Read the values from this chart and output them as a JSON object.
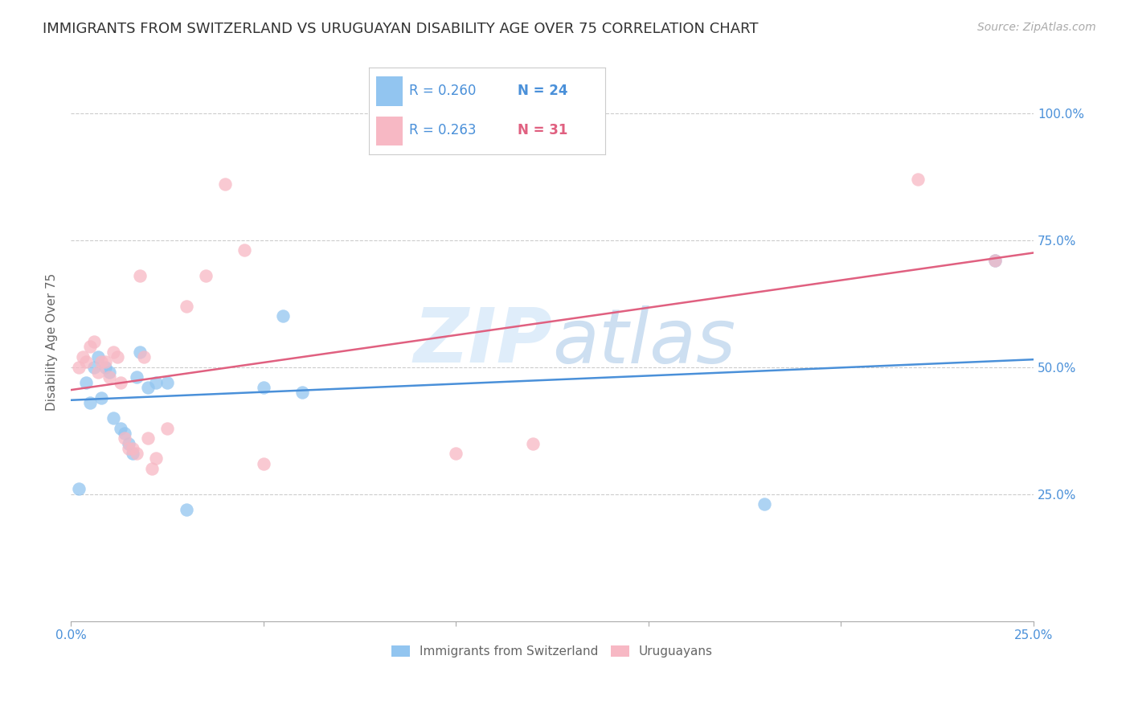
{
  "title": "IMMIGRANTS FROM SWITZERLAND VS URUGUAYAN DISABILITY AGE OVER 75 CORRELATION CHART",
  "source": "Source: ZipAtlas.com",
  "ylabel": "Disability Age Over 75",
  "xlim": [
    0.0,
    0.25
  ],
  "ylim": [
    0.0,
    1.1
  ],
  "xticks": [
    0.0,
    0.05,
    0.1,
    0.15,
    0.2,
    0.25
  ],
  "xticklabels": [
    "0.0%",
    "",
    "",
    "",
    "",
    "25.0%"
  ],
  "yticks": [
    0.25,
    0.5,
    0.75,
    1.0
  ],
  "yticklabels": [
    "25.0%",
    "50.0%",
    "75.0%",
    "100.0%"
  ],
  "legend_r_blue": "R = 0.260",
  "legend_n_blue": "N = 24",
  "legend_r_pink": "R = 0.263",
  "legend_n_pink": "N = 31",
  "blue_scatter_color": "#92c5f0",
  "pink_scatter_color": "#f7b8c4",
  "line_blue_color": "#4a90d9",
  "line_pink_color": "#e06080",
  "tick_color": "#4a90d9",
  "ylabel_color": "#666666",
  "title_color": "#333333",
  "source_color": "#aaaaaa",
  "grid_color": "#cccccc",
  "legend_text_dark": "#333333",
  "legend_val_color": "#4a90d9",
  "legend_n_blue_color": "#4a90d9",
  "legend_n_pink_color": "#e06080",
  "title_fontsize": 13,
  "axis_label_fontsize": 11,
  "tick_fontsize": 11,
  "source_fontsize": 10,
  "legend_fontsize": 13,
  "blue_scatter_x": [
    0.002,
    0.004,
    0.005,
    0.006,
    0.007,
    0.008,
    0.009,
    0.01,
    0.011,
    0.013,
    0.014,
    0.015,
    0.016,
    0.017,
    0.018,
    0.02,
    0.022,
    0.025,
    0.03,
    0.05,
    0.055,
    0.06,
    0.18,
    0.24
  ],
  "blue_scatter_y": [
    0.26,
    0.47,
    0.43,
    0.5,
    0.52,
    0.44,
    0.5,
    0.49,
    0.4,
    0.38,
    0.37,
    0.35,
    0.33,
    0.48,
    0.53,
    0.46,
    0.47,
    0.47,
    0.22,
    0.46,
    0.6,
    0.45,
    0.23,
    0.71
  ],
  "pink_scatter_x": [
    0.002,
    0.003,
    0.004,
    0.005,
    0.006,
    0.007,
    0.008,
    0.009,
    0.01,
    0.011,
    0.012,
    0.013,
    0.014,
    0.015,
    0.016,
    0.017,
    0.018,
    0.019,
    0.02,
    0.021,
    0.022,
    0.025,
    0.03,
    0.035,
    0.04,
    0.045,
    0.05,
    0.1,
    0.12,
    0.22,
    0.24
  ],
  "pink_scatter_y": [
    0.5,
    0.52,
    0.51,
    0.54,
    0.55,
    0.49,
    0.51,
    0.51,
    0.48,
    0.53,
    0.52,
    0.47,
    0.36,
    0.34,
    0.34,
    0.33,
    0.68,
    0.52,
    0.36,
    0.3,
    0.32,
    0.38,
    0.62,
    0.68,
    0.86,
    0.73,
    0.31,
    0.33,
    0.35,
    0.87,
    0.71
  ],
  "blue_line_x": [
    0.0,
    0.25
  ],
  "blue_line_y": [
    0.435,
    0.515
  ],
  "pink_line_x": [
    0.0,
    0.25
  ],
  "pink_line_y": [
    0.455,
    0.725
  ]
}
